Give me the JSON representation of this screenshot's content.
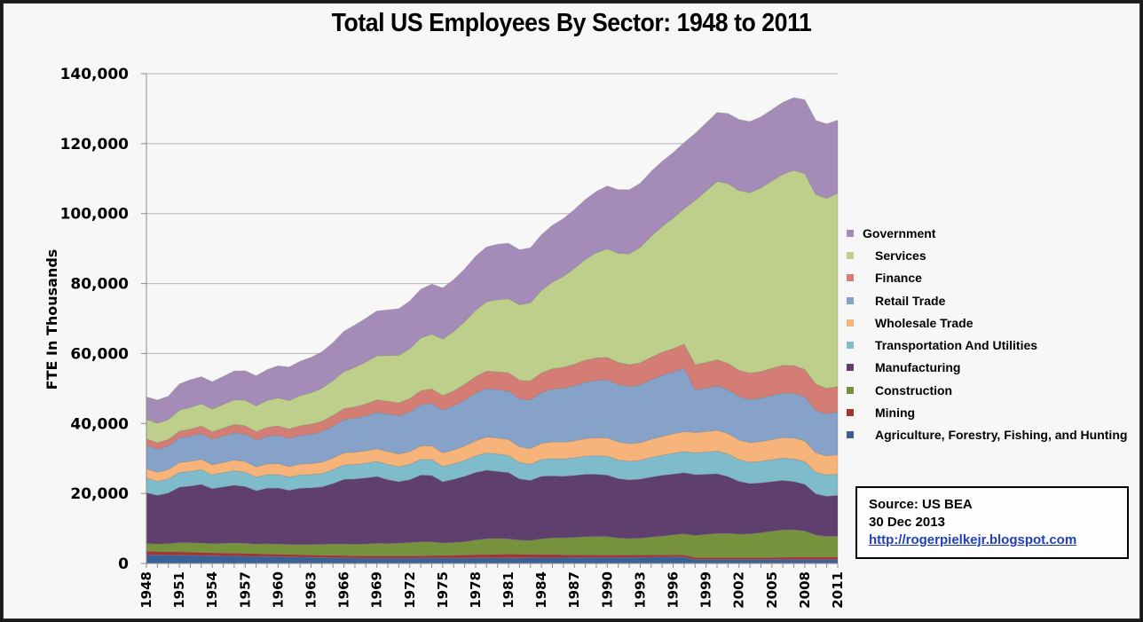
{
  "chart_data": {
    "type": "area",
    "stacked": true,
    "title": "Total US Employees By Sector:  1948 to 2011",
    "xlabel": "",
    "ylabel": "FTE In Thousands",
    "ylim": [
      0,
      140000
    ],
    "yticks": [
      0,
      20000,
      40000,
      60000,
      80000,
      100000,
      120000,
      140000
    ],
    "ytick_labels": [
      "0",
      "20,000",
      "40,000",
      "60,000",
      "80,000",
      "100,000",
      "120,000",
      "140,000"
    ],
    "xlim": [
      1948,
      2011
    ],
    "xtick_labels": [
      "1948",
      "1951",
      "1954",
      "1957",
      "1960",
      "1963",
      "1966",
      "1969",
      "1972",
      "1975",
      "1978",
      "1981",
      "1984",
      "1987",
      "1990",
      "1993",
      "1996",
      "1999",
      "2002",
      "2005",
      "2008",
      "2011"
    ],
    "grid": "horizontal",
    "legend_position": "right",
    "x": [
      1948,
      1949,
      1950,
      1951,
      1952,
      1953,
      1954,
      1955,
      1956,
      1957,
      1958,
      1959,
      1960,
      1961,
      1962,
      1963,
      1964,
      1965,
      1966,
      1967,
      1968,
      1969,
      1970,
      1971,
      1972,
      1973,
      1974,
      1975,
      1976,
      1977,
      1978,
      1979,
      1980,
      1981,
      1982,
      1983,
      1984,
      1985,
      1986,
      1987,
      1988,
      1989,
      1990,
      1991,
      1992,
      1993,
      1994,
      1995,
      1996,
      1997,
      1998,
      1999,
      2000,
      2001,
      2002,
      2003,
      2004,
      2005,
      2006,
      2007,
      2008,
      2009,
      2010,
      2011
    ],
    "series": [
      {
        "name": "Agriculture, Forestry, Fishing, and Hunting",
        "color": "#3a6197",
        "values": [
          2500,
          2450,
          2400,
          2350,
          2300,
          2250,
          2200,
          2150,
          2100,
          2050,
          2000,
          1950,
          1900,
          1850,
          1800,
          1750,
          1700,
          1650,
          1600,
          1550,
          1500,
          1500,
          1500,
          1500,
          1500,
          1550,
          1550,
          1550,
          1550,
          1550,
          1600,
          1600,
          1600,
          1600,
          1600,
          1600,
          1650,
          1650,
          1650,
          1700,
          1700,
          1750,
          1750,
          1750,
          1750,
          1750,
          1800,
          1800,
          1850,
          1850,
          1100,
          1100,
          1100,
          1100,
          1100,
          1100,
          1100,
          1100,
          1100,
          1100,
          1100,
          1100,
          1100,
          1100
        ]
      },
      {
        "name": "Mining",
        "color": "#a23431",
        "values": [
          1000,
          950,
          950,
          950,
          950,
          900,
          850,
          850,
          850,
          850,
          800,
          750,
          750,
          700,
          700,
          650,
          650,
          650,
          650,
          650,
          650,
          650,
          650,
          650,
          650,
          650,
          700,
          750,
          800,
          850,
          900,
          950,
          1000,
          1100,
          1050,
          950,
          950,
          900,
          800,
          750,
          750,
          700,
          700,
          700,
          650,
          650,
          600,
          600,
          600,
          600,
          600,
          550,
          550,
          550,
          550,
          550,
          550,
          600,
          650,
          700,
          750,
          700,
          700,
          750
        ]
      },
      {
        "name": "Construction",
        "color": "#76923c",
        "values": [
          2200,
          2150,
          2300,
          2600,
          2650,
          2650,
          2600,
          2700,
          2900,
          2800,
          2700,
          2900,
          2900,
          2850,
          2900,
          3000,
          3100,
          3250,
          3300,
          3250,
          3400,
          3600,
          3500,
          3600,
          3800,
          3950,
          3900,
          3550,
          3600,
          3800,
          4200,
          4500,
          4500,
          4300,
          4000,
          4000,
          4400,
          4700,
          4850,
          5000,
          5150,
          5250,
          5200,
          4800,
          4700,
          4800,
          5100,
          5400,
          5700,
          6000,
          6300,
          6650,
          6900,
          6900,
          6700,
          6800,
          7100,
          7500,
          7800,
          7800,
          7400,
          6300,
          5900,
          5900
        ]
      },
      {
        "name": "Manufacturing",
        "color": "#5f3f6e",
        "values": [
          14500,
          13900,
          14500,
          15900,
          16200,
          16800,
          15700,
          16200,
          16500,
          16300,
          15300,
          15900,
          16000,
          15500,
          16100,
          16200,
          16400,
          17300,
          18500,
          18700,
          18900,
          19100,
          18300,
          17600,
          18000,
          19100,
          19000,
          17500,
          18100,
          18700,
          19300,
          19600,
          19200,
          19000,
          17500,
          17200,
          17900,
          17800,
          17600,
          17700,
          17900,
          17800,
          17600,
          17000,
          16800,
          16900,
          17200,
          17400,
          17400,
          17500,
          17400,
          17200,
          17100,
          16300,
          15100,
          14400,
          14300,
          14200,
          14200,
          13800,
          13400,
          11800,
          11500,
          11700
        ]
      },
      {
        "name": "Transportation And Utilities",
        "color": "#7ebbcb",
        "values": [
          4200,
          4000,
          4000,
          4200,
          4200,
          4200,
          3950,
          4050,
          4150,
          4100,
          3850,
          3900,
          3900,
          3750,
          3800,
          3800,
          3850,
          3950,
          4100,
          4150,
          4200,
          4300,
          4350,
          4300,
          4350,
          4500,
          4500,
          4350,
          4400,
          4550,
          4750,
          4950,
          4950,
          4850,
          4700,
          4600,
          4800,
          4900,
          4950,
          5050,
          5200,
          5300,
          5400,
          5350,
          5300,
          5400,
          5600,
          5750,
          5900,
          6050,
          6200,
          6350,
          6500,
          6450,
          6200,
          6100,
          6150,
          6250,
          6350,
          6450,
          6450,
          6150,
          6050,
          6100
        ]
      },
      {
        "name": "Wholesale Trade",
        "color": "#f6b47a",
        "values": [
          2700,
          2650,
          2700,
          2850,
          2900,
          2950,
          2900,
          2950,
          3050,
          3050,
          2950,
          3050,
          3100,
          3050,
          3100,
          3150,
          3250,
          3350,
          3450,
          3500,
          3550,
          3650,
          3700,
          3650,
          3700,
          3850,
          4000,
          3900,
          4000,
          4150,
          4350,
          4550,
          4600,
          4600,
          4500,
          4500,
          4650,
          4800,
          4800,
          4850,
          5000,
          5150,
          5250,
          5150,
          5050,
          5050,
          5200,
          5400,
          5600,
          5700,
          5800,
          5850,
          5950,
          5800,
          5650,
          5600,
          5650,
          5750,
          5900,
          6000,
          5950,
          5600,
          5500,
          5550
        ]
      },
      {
        "name": "Retail Trade",
        "color": "#86a2c8",
        "values": [
          6700,
          6600,
          6700,
          7000,
          7200,
          7400,
          7300,
          7500,
          7800,
          7800,
          7600,
          7900,
          8100,
          8000,
          8200,
          8400,
          8700,
          9100,
          9500,
          9700,
          10000,
          10400,
          10700,
          10900,
          11300,
          11800,
          12100,
          12200,
          12600,
          13100,
          13600,
          13900,
          13800,
          13800,
          13700,
          13900,
          14500,
          15100,
          15400,
          15700,
          16100,
          16400,
          16600,
          16400,
          16300,
          16500,
          17000,
          17500,
          17700,
          18100,
          12200,
          12400,
          12700,
          12600,
          12400,
          12300,
          12400,
          12600,
          12700,
          12800,
          12600,
          12100,
          12000,
          12200
        ]
      },
      {
        "name": "Finance",
        "color": "#d47d74",
        "values": [
          1800,
          1800,
          1850,
          1950,
          2000,
          2100,
          2150,
          2250,
          2350,
          2400,
          2450,
          2550,
          2650,
          2700,
          2750,
          2850,
          2950,
          3050,
          3150,
          3250,
          3400,
          3550,
          3650,
          3700,
          3800,
          3950,
          4100,
          4150,
          4250,
          4450,
          4700,
          4900,
          5100,
          5250,
          5300,
          5400,
          5600,
          5800,
          6000,
          6200,
          6300,
          6400,
          6400,
          6300,
          6250,
          6300,
          6450,
          6500,
          6650,
          6900,
          7200,
          7350,
          7400,
          7500,
          7500,
          7550,
          7600,
          7800,
          7900,
          7900,
          7800,
          7500,
          7300,
          7300
        ]
      },
      {
        "name": "Services",
        "color": "#bdcf8a",
        "values": [
          5600,
          5600,
          5700,
          6000,
          6200,
          6400,
          6500,
          6800,
          7100,
          7300,
          7400,
          7700,
          8000,
          8200,
          8600,
          9000,
          9500,
          10000,
          10600,
          11300,
          12000,
          12600,
          13100,
          13600,
          14300,
          15100,
          15700,
          16200,
          17000,
          18000,
          19000,
          19900,
          20600,
          21200,
          21600,
          22400,
          23600,
          24800,
          26000,
          27400,
          28800,
          30100,
          31000,
          31200,
          31700,
          33000,
          34600,
          36000,
          37300,
          38700,
          47000,
          49000,
          51000,
          51400,
          51400,
          51600,
          52500,
          53500,
          54700,
          55800,
          56000,
          54200,
          54300,
          55200
        ]
      },
      {
        "name": "Government",
        "color": "#a58cb8",
        "values": [
          6400,
          6600,
          6700,
          7500,
          7900,
          7700,
          7800,
          8000,
          8200,
          8400,
          8600,
          8800,
          9200,
          9500,
          9800,
          10100,
          10400,
          10800,
          11500,
          12100,
          12500,
          12800,
          13000,
          13300,
          13600,
          13900,
          14300,
          14600,
          14800,
          15000,
          15400,
          15600,
          15900,
          15800,
          15700,
          15700,
          15900,
          16200,
          16500,
          16800,
          17100,
          17500,
          18000,
          18200,
          18300,
          18300,
          18500,
          18600,
          18700,
          18900,
          19100,
          19400,
          19700,
          20000,
          20300,
          20300,
          20300,
          20400,
          20500,
          20800,
          21100,
          21200,
          21300,
          20900
        ]
      }
    ]
  },
  "legend": {
    "items": [
      {
        "label": "Government",
        "color": "#a58cb8"
      },
      {
        "label": "Services",
        "color": "#bdcf8a"
      },
      {
        "label": "Finance",
        "color": "#d47d74"
      },
      {
        "label": "Retail Trade",
        "color": "#86a2c8"
      },
      {
        "label": "Wholesale Trade",
        "color": "#f6b47a"
      },
      {
        "label": "Transportation And Utilities",
        "color": "#7ebbcb"
      },
      {
        "label": "Manufacturing",
        "color": "#5f3f6e"
      },
      {
        "label": "Construction",
        "color": "#76923c"
      },
      {
        "label": "Mining",
        "color": "#a23431"
      },
      {
        "label": "Agriculture, Forestry, Fishing, and Hunting",
        "color": "#3a6197"
      }
    ]
  },
  "source": {
    "line1": "Source: US BEA",
    "line2": "30 Dec 2013",
    "link": "http://rogerpielkejr.blogspot.com"
  }
}
